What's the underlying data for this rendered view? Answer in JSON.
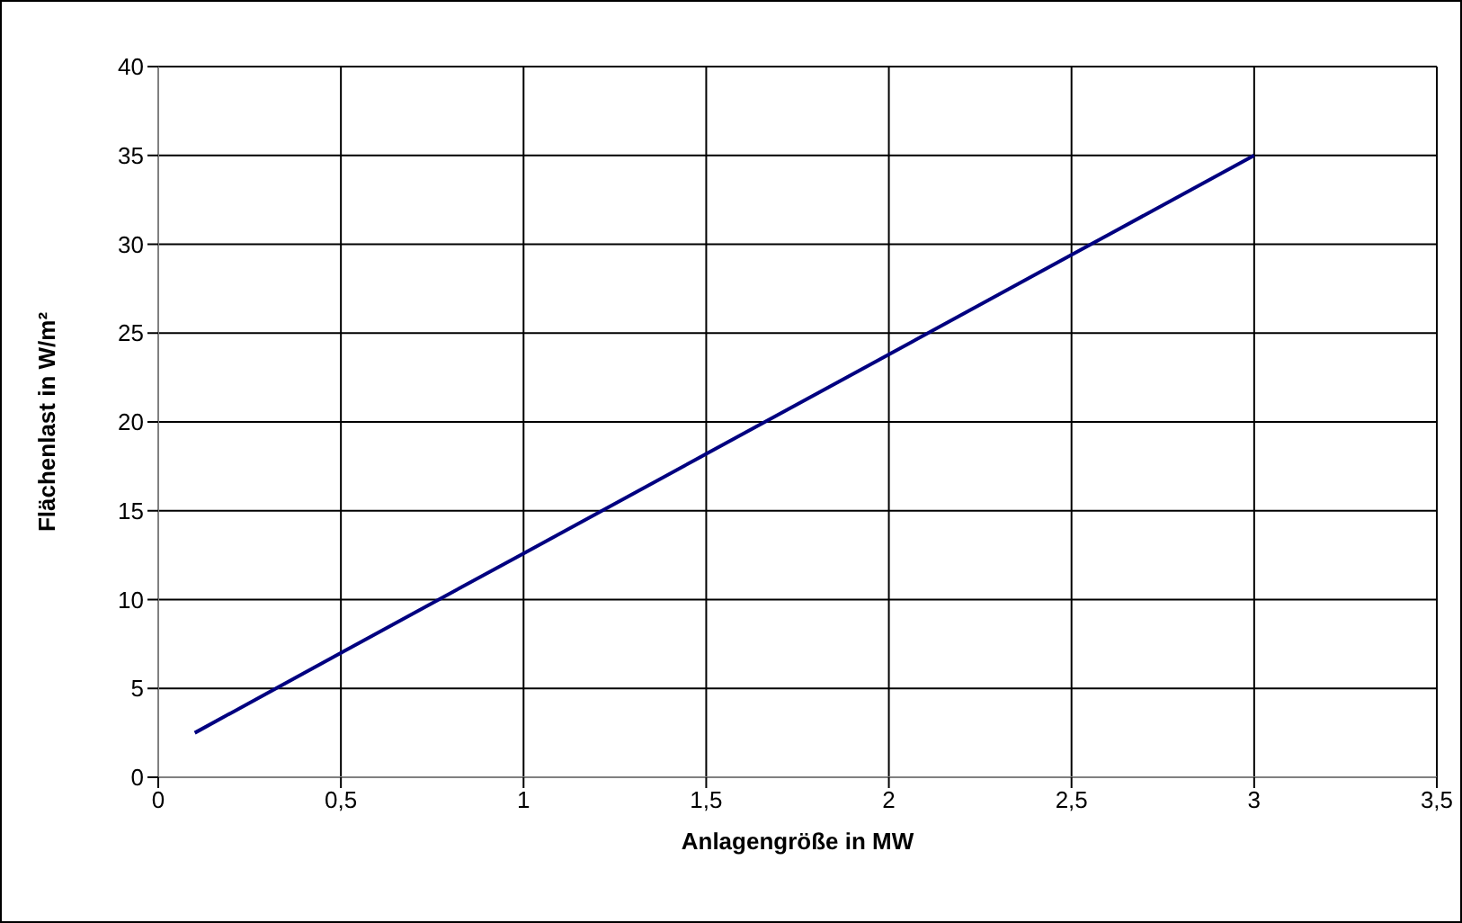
{
  "chart_data": {
    "type": "line",
    "xlabel": "Anlagengröße in MW",
    "ylabel": "Flächenlast in W/m²",
    "x": [
      0.1,
      0.5,
      1,
      1.5,
      2,
      2.5,
      3
    ],
    "series": [
      {
        "color": "#000080",
        "values": [
          2.5,
          7,
          12.6,
          18.2,
          23.8,
          29.4,
          35
        ]
      }
    ],
    "xlim": [
      0,
      3.5
    ],
    "xticks": [
      0,
      {
        "value": 0.5,
        "label": "0,5"
      },
      1,
      {
        "value": 1.5,
        "label": "1,5"
      },
      2,
      {
        "value": 2.5,
        "label": "2,5"
      },
      3,
      {
        "value": 3.5,
        "label": "3,5"
      }
    ],
    "ylim": [
      0,
      40
    ],
    "yticks": [
      0,
      5,
      10,
      15,
      20,
      25,
      30,
      35,
      40
    ],
    "grid": true,
    "marker": "none",
    "line_style": "solid",
    "legend": false
  }
}
